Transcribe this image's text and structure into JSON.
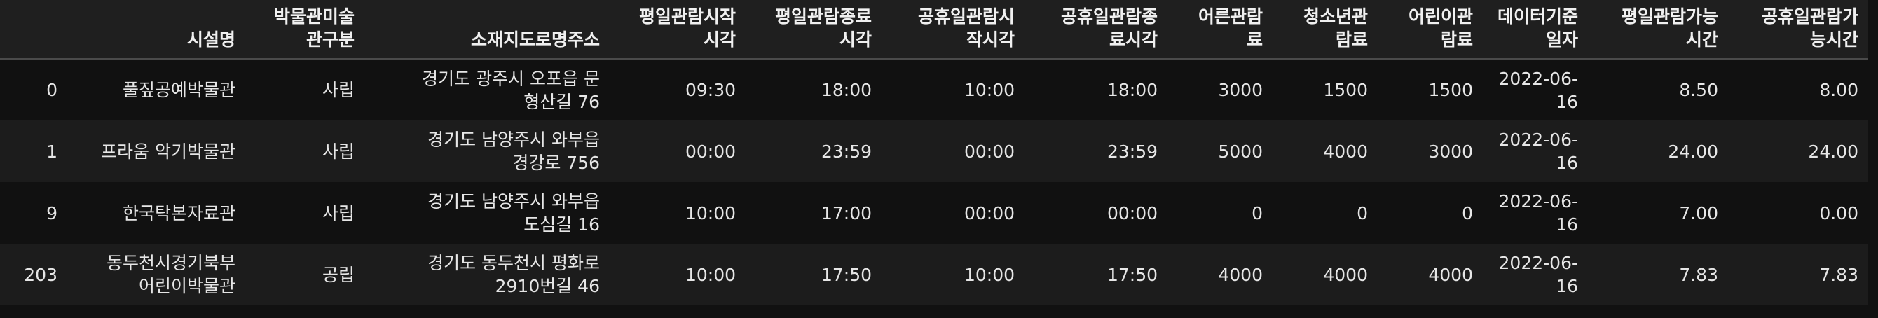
{
  "table": {
    "columns": [
      "",
      "시설명",
      "박물관미술관구분",
      "소재지도로명주소",
      "평일관람시작시각",
      "평일관람종료시각",
      "공휴일관람시작시각",
      "공휴일관람종료시각",
      "어른관람료",
      "청소년관람료",
      "어린이관람료",
      "데이터기준일자",
      "평일관람가능시간",
      "공휴일관람가능시간"
    ],
    "header_lines": [
      [
        ""
      ],
      [
        "시설명"
      ],
      [
        "박물관미술",
        "관구분"
      ],
      [
        "소재지도로명주소"
      ],
      [
        "평일관람시작",
        "시각"
      ],
      [
        "평일관람종료",
        "시각"
      ],
      [
        "공휴일관람시",
        "작시각"
      ],
      [
        "공휴일관람종",
        "료시각"
      ],
      [
        "어른관람",
        "료"
      ],
      [
        "청소년관",
        "람료"
      ],
      [
        "어린이관",
        "람료"
      ],
      [
        "데이터기준",
        "일자"
      ],
      [
        "평일관람가능",
        "시간"
      ],
      [
        "공휴일관람가",
        "능시간"
      ]
    ],
    "rows": [
      {
        "index": "0",
        "name": [
          "풀짚공예박물관"
        ],
        "type": "사립",
        "address": [
          "경기도 광주시 오포읍 문",
          "형산길 76"
        ],
        "weekday_open": "09:30",
        "weekday_close": "18:00",
        "holiday_open": "10:00",
        "holiday_close": "18:00",
        "adult_fee": "3000",
        "youth_fee": "1500",
        "child_fee": "1500",
        "date": [
          "2022-06-",
          "16"
        ],
        "weekday_hours": "8.50",
        "holiday_hours": "8.00"
      },
      {
        "index": "1",
        "name": [
          "프라움 악기박물관"
        ],
        "type": "사립",
        "address": [
          "경기도 남양주시 와부읍",
          "경강로 756"
        ],
        "weekday_open": "00:00",
        "weekday_close": "23:59",
        "holiday_open": "00:00",
        "holiday_close": "23:59",
        "adult_fee": "5000",
        "youth_fee": "4000",
        "child_fee": "3000",
        "date": [
          "2022-06-",
          "16"
        ],
        "weekday_hours": "24.00",
        "holiday_hours": "24.00"
      },
      {
        "index": "9",
        "name": [
          "한국탁본자료관"
        ],
        "type": "사립",
        "address": [
          "경기도 남양주시 와부읍",
          "도심길 16"
        ],
        "weekday_open": "10:00",
        "weekday_close": "17:00",
        "holiday_open": "00:00",
        "holiday_close": "00:00",
        "adult_fee": "0",
        "youth_fee": "0",
        "child_fee": "0",
        "date": [
          "2022-06-",
          "16"
        ],
        "weekday_hours": "7.00",
        "holiday_hours": "0.00"
      },
      {
        "index": "203",
        "name": [
          "동두천시경기북부",
          "어린이박물관"
        ],
        "type": "공립",
        "address": [
          "경기도 동두천시 평화로",
          "2910번길 46"
        ],
        "weekday_open": "10:00",
        "weekday_close": "17:50",
        "holiday_open": "10:00",
        "holiday_close": "17:50",
        "adult_fee": "4000",
        "youth_fee": "4000",
        "child_fee": "4000",
        "date": [
          "2022-06-",
          "16"
        ],
        "weekday_hours": "7.83",
        "holiday_hours": "7.83"
      }
    ]
  }
}
